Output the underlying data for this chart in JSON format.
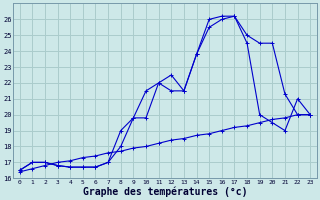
{
  "background_color": "#cde8e8",
  "grid_color": "#aacccc",
  "line_color": "#0000cc",
  "xlabel": "Graphe des températures (°c)",
  "xlabel_fontsize": 7,
  "ylim": [
    16,
    27
  ],
  "xlim": [
    -0.5,
    23.5
  ],
  "yticks": [
    16,
    17,
    18,
    19,
    20,
    21,
    22,
    23,
    24,
    25,
    26
  ],
  "xticks": [
    0,
    1,
    2,
    3,
    4,
    5,
    6,
    7,
    8,
    9,
    10,
    11,
    12,
    13,
    14,
    15,
    16,
    17,
    18,
    19,
    20,
    21,
    22,
    23
  ],
  "series1_x": [
    0,
    1,
    2,
    3,
    4,
    5,
    6,
    7,
    8,
    9,
    10,
    11,
    12,
    13,
    14,
    15,
    16,
    17,
    18,
    19,
    20,
    21,
    22,
    23
  ],
  "series1_y": [
    16.5,
    17.0,
    17.0,
    16.8,
    16.7,
    16.7,
    16.7,
    17.0,
    19.0,
    19.8,
    21.5,
    22.0,
    21.5,
    21.5,
    23.8,
    26.0,
    26.2,
    26.2,
    25.0,
    24.5,
    24.5,
    21.3,
    20.0,
    20.0
  ],
  "series2_x": [
    0,
    1,
    2,
    3,
    4,
    5,
    6,
    7,
    8,
    9,
    10,
    11,
    12,
    13,
    14,
    15,
    16,
    17,
    18,
    19,
    20,
    21,
    22,
    23
  ],
  "series2_y": [
    16.5,
    17.0,
    17.0,
    16.8,
    16.7,
    16.7,
    16.7,
    17.0,
    18.0,
    19.8,
    19.8,
    22.0,
    22.5,
    21.5,
    23.8,
    25.5,
    26.0,
    26.2,
    24.5,
    20.0,
    19.5,
    19.0,
    21.0,
    20.0
  ],
  "series3_x": [
    0,
    1,
    2,
    3,
    4,
    5,
    6,
    7,
    8,
    9,
    10,
    11,
    12,
    13,
    14,
    15,
    16,
    17,
    18,
    19,
    20,
    21,
    22,
    23
  ],
  "series3_y": [
    16.4,
    16.6,
    16.8,
    17.0,
    17.1,
    17.3,
    17.4,
    17.6,
    17.7,
    17.9,
    18.0,
    18.2,
    18.4,
    18.5,
    18.7,
    18.8,
    19.0,
    19.2,
    19.3,
    19.5,
    19.7,
    19.8,
    20.0,
    20.0
  ]
}
